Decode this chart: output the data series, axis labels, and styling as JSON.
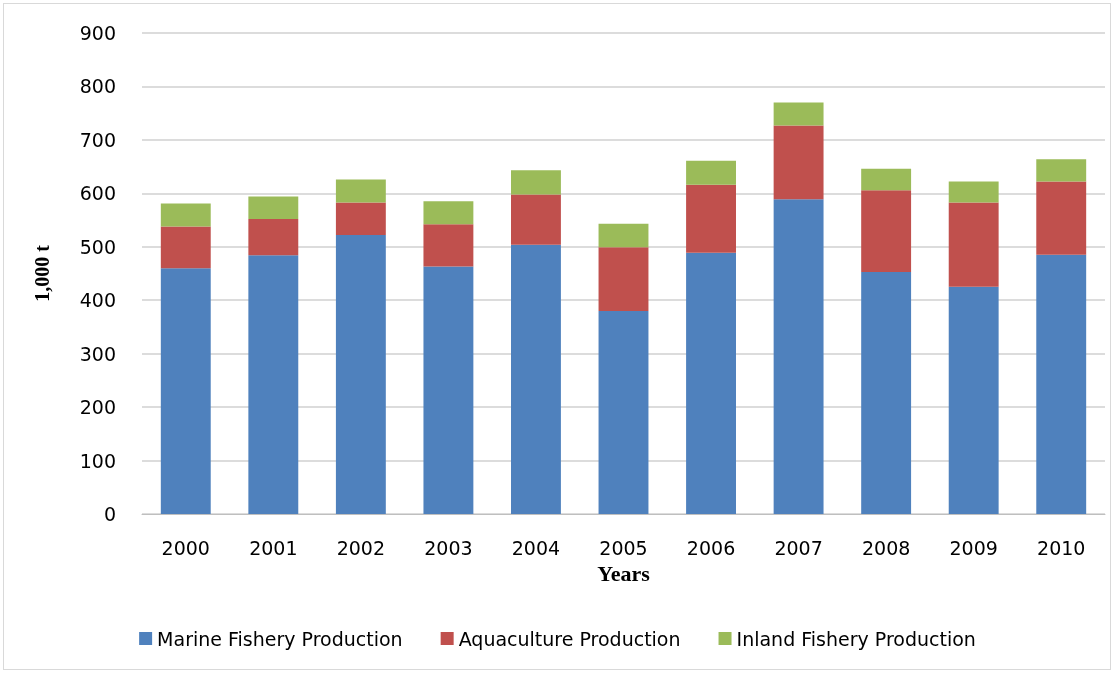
{
  "chart_data": {
    "type": "bar",
    "stacked": true,
    "xlabel": "Years",
    "ylabel": "1,000 t",
    "categories": [
      "2000",
      "2001",
      "2002",
      "2003",
      "2004",
      "2005",
      "2006",
      "2007",
      "2008",
      "2009",
      "2010"
    ],
    "series": [
      {
        "name": "Marine Fishery Production",
        "color": "#4f81bd",
        "values": [
          460,
          484,
          522,
          463,
          504,
          380,
          489,
          589,
          453,
          425,
          485
        ]
      },
      {
        "name": "Aquaculture Production",
        "color": "#c0504d",
        "values": [
          78,
          68,
          61,
          79,
          94,
          119,
          127,
          138,
          153,
          158,
          137
        ]
      },
      {
        "name": "Inland Fishery Production",
        "color": "#9bbb59",
        "values": [
          43,
          42,
          43,
          43,
          45,
          44,
          45,
          43,
          40,
          39,
          42
        ]
      }
    ],
    "ylim": [
      0,
      900
    ],
    "yticks": [
      0,
      100,
      200,
      300,
      400,
      500,
      600,
      700,
      800,
      900
    ],
    "grid": "y",
    "legend": "bottom"
  }
}
